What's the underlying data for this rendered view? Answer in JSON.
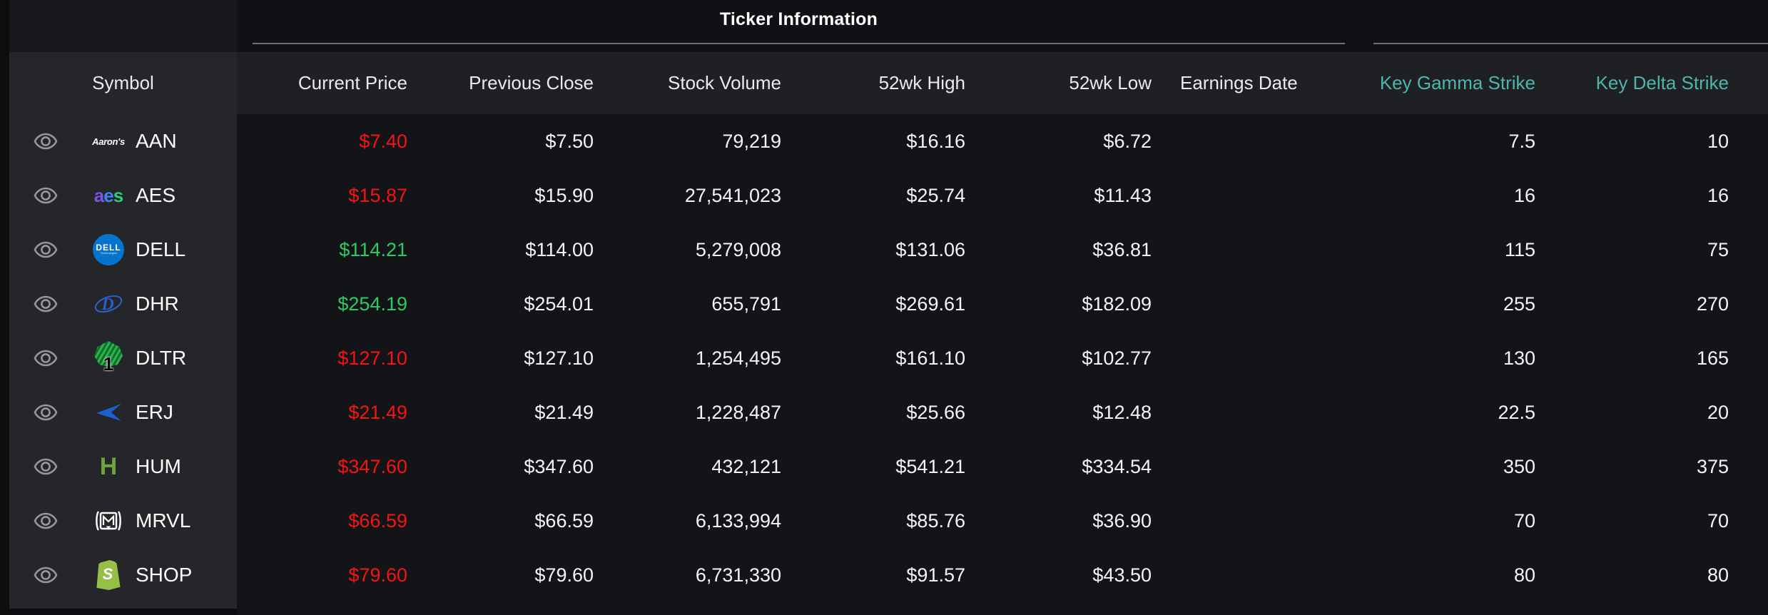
{
  "panel": {
    "primary_section_title": "Ticker Information",
    "secondary_section_title": ""
  },
  "colors": {
    "up": "#2bcb63",
    "down": "#f51313",
    "key_strike_header": "#4db6ac",
    "section_rule": "#6e7176"
  },
  "icons": {
    "visibility": "eye-icon"
  },
  "columns": {
    "symbol": "Symbol",
    "current_price": "Current Price",
    "previous_close": "Previous Close",
    "stock_volume": "Stock Volume",
    "high_52wk": "52wk High",
    "low_52wk": "52wk Low",
    "earnings_date": "Earnings Date",
    "key_gamma_strike": "Key Gamma Strike",
    "key_delta_strike": "Key Delta Strike"
  },
  "rows": [
    {
      "symbol": "AAN",
      "logo": "aarons-logo",
      "current_price": "$7.40",
      "direction": "down",
      "previous_close": "$7.50",
      "stock_volume": "79,219",
      "high_52wk": "$16.16",
      "low_52wk": "$6.72",
      "earnings_date": "",
      "key_gamma_strike": "7.5",
      "key_delta_strike": "10"
    },
    {
      "symbol": "AES",
      "logo": "aes-logo",
      "current_price": "$15.87",
      "direction": "down",
      "previous_close": "$15.90",
      "stock_volume": "27,541,023",
      "high_52wk": "$25.74",
      "low_52wk": "$11.43",
      "earnings_date": "",
      "key_gamma_strike": "16",
      "key_delta_strike": "16"
    },
    {
      "symbol": "DELL",
      "logo": "dell-logo",
      "current_price": "$114.21",
      "direction": "up",
      "previous_close": "$114.00",
      "stock_volume": "5,279,008",
      "high_52wk": "$131.06",
      "low_52wk": "$36.81",
      "earnings_date": "",
      "key_gamma_strike": "115",
      "key_delta_strike": "75"
    },
    {
      "symbol": "DHR",
      "logo": "danaher-logo",
      "current_price": "$254.19",
      "direction": "up",
      "previous_close": "$254.01",
      "stock_volume": "655,791",
      "high_52wk": "$269.61",
      "low_52wk": "$182.09",
      "earnings_date": "",
      "key_gamma_strike": "255",
      "key_delta_strike": "270"
    },
    {
      "symbol": "DLTR",
      "logo": "dollar-tree-logo",
      "current_price": "$127.10",
      "direction": "down",
      "previous_close": "$127.10",
      "stock_volume": "1,254,495",
      "high_52wk": "$161.10",
      "low_52wk": "$102.77",
      "earnings_date": "",
      "key_gamma_strike": "130",
      "key_delta_strike": "165"
    },
    {
      "symbol": "ERJ",
      "logo": "embraer-logo",
      "current_price": "$21.49",
      "direction": "down",
      "previous_close": "$21.49",
      "stock_volume": "1,228,487",
      "high_52wk": "$25.66",
      "low_52wk": "$12.48",
      "earnings_date": "",
      "key_gamma_strike": "22.5",
      "key_delta_strike": "20"
    },
    {
      "symbol": "HUM",
      "logo": "humana-logo",
      "current_price": "$347.60",
      "direction": "down",
      "previous_close": "$347.60",
      "stock_volume": "432,121",
      "high_52wk": "$541.21",
      "low_52wk": "$334.54",
      "earnings_date": "",
      "key_gamma_strike": "350",
      "key_delta_strike": "375"
    },
    {
      "symbol": "MRVL",
      "logo": "marvell-logo",
      "current_price": "$66.59",
      "direction": "down",
      "previous_close": "$66.59",
      "stock_volume": "6,133,994",
      "high_52wk": "$85.76",
      "low_52wk": "$36.90",
      "earnings_date": "",
      "key_gamma_strike": "70",
      "key_delta_strike": "70"
    },
    {
      "symbol": "SHOP",
      "logo": "shopify-logo",
      "current_price": "$79.60",
      "direction": "down",
      "previous_close": "$79.60",
      "stock_volume": "6,731,330",
      "high_52wk": "$91.57",
      "low_52wk": "$43.50",
      "earnings_date": "",
      "key_gamma_strike": "80",
      "key_delta_strike": "80"
    }
  ]
}
